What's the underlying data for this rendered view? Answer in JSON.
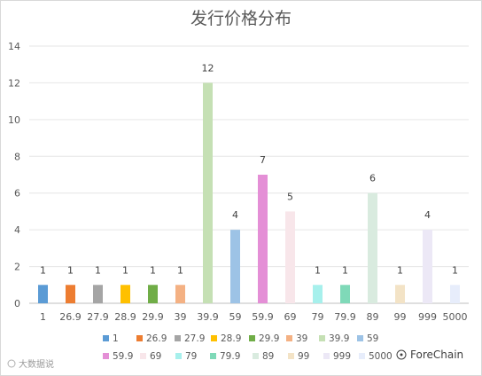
{
  "chart_data": {
    "type": "bar",
    "title": "发行价格分布",
    "categories": [
      "1",
      "26.9",
      "27.9",
      "28.9",
      "29.9",
      "39",
      "39.9",
      "59",
      "59.9",
      "69",
      "79",
      "79.9",
      "89",
      "99",
      "999",
      "5000"
    ],
    "values": [
      1,
      1,
      1,
      1,
      1,
      1,
      12,
      4,
      7,
      5,
      1,
      1,
      6,
      1,
      4,
      1
    ],
    "colors": [
      "#5b9bd5",
      "#ed7d31",
      "#a5a5a5",
      "#ffc000",
      "#70ad47",
      "#f4b183",
      "#c5e0b4",
      "#9dc3e6",
      "#e48fd6",
      "#f8e6ea",
      "#a7f0ec",
      "#7fd9b8",
      "#d9ebdf",
      "#f3e3c6",
      "#ece8f6",
      "#e7edfb"
    ],
    "ylim": [
      0,
      14
    ],
    "yticks": [
      0,
      2,
      4,
      6,
      8,
      10,
      12,
      14
    ],
    "grid": true,
    "legend": "bottom"
  },
  "watermark": "大数据说",
  "brand": "ForeChain"
}
